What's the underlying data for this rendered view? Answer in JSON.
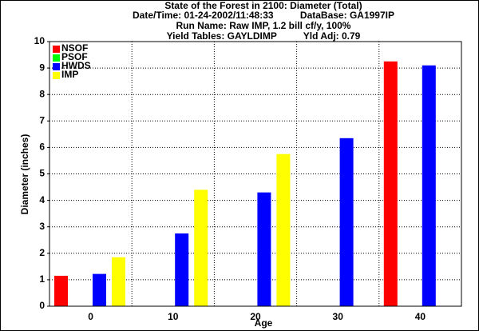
{
  "chart_data": {
    "type": "bar",
    "title": "State of the Forest in 2100: Diameter (Total)",
    "subtitle_lines": [
      "Date/Time: 01-24-2002/11:48:33          DataBase: GA1997IP",
      "Run Name: Raw IMP, 1.2 bill cf/y, 100%",
      "Yield Tables: GAYLDIMP          Yld Adj: 0.79"
    ],
    "x_label": "Age",
    "y_label": "Diameter (inches)",
    "categories": [
      "0",
      "10",
      "20",
      "30",
      "40"
    ],
    "series": [
      {
        "name": "NSOF",
        "color": "#ff0000",
        "values": [
          1.15,
          0,
          0,
          0,
          9.25
        ]
      },
      {
        "name": "PSOF",
        "color": "#00ff00",
        "values": [
          0,
          0,
          0,
          0,
          0
        ]
      },
      {
        "name": "HWDS",
        "color": "#0000ff",
        "values": [
          1.22,
          2.75,
          4.3,
          6.35,
          9.1
        ]
      },
      {
        "name": "IMP",
        "color": "#ffff00",
        "values": [
          1.85,
          4.4,
          5.75,
          0,
          0
        ]
      }
    ],
    "ylim": [
      0,
      10
    ],
    "yticks": [
      0,
      1,
      2,
      3,
      4,
      5,
      6,
      7,
      8,
      9,
      10
    ],
    "grid": true,
    "legend": "top-left"
  }
}
